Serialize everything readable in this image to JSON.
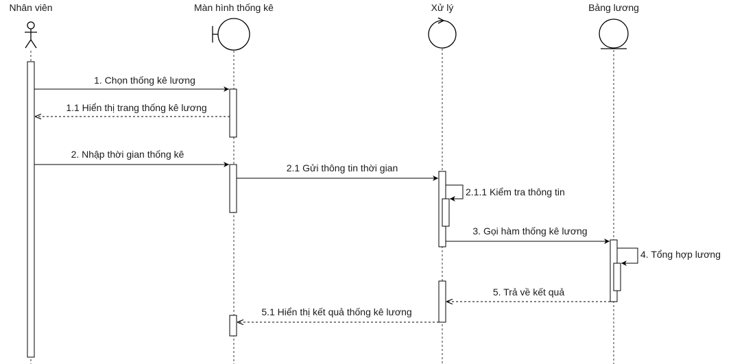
{
  "participants": [
    {
      "id": "nhan-vien",
      "type": "actor",
      "label": "Nhân viên"
    },
    {
      "id": "man-hinh",
      "type": "boundary",
      "label": "Màn hình thống kê"
    },
    {
      "id": "xu-ly",
      "type": "control",
      "label": "Xử lý"
    },
    {
      "id": "bang-luong",
      "type": "entity",
      "label": "Bảng lương"
    }
  ],
  "messages": [
    {
      "id": "m1",
      "kind": "sync",
      "from": "nhan-vien",
      "to": "man-hinh",
      "label": "1. Chọn thống kê lương"
    },
    {
      "id": "m1-1",
      "kind": "return",
      "from": "man-hinh",
      "to": "nhan-vien",
      "label": "1.1 Hiển thị trang thống kê lương"
    },
    {
      "id": "m2",
      "kind": "sync",
      "from": "nhan-vien",
      "to": "man-hinh",
      "label": "2. Nhập thời gian thống kê"
    },
    {
      "id": "m2-1",
      "kind": "sync",
      "from": "man-hinh",
      "to": "xu-ly",
      "label": "2.1 Gửi thông tin thời gian"
    },
    {
      "id": "m2-1-1",
      "kind": "self",
      "from": "xu-ly",
      "to": "xu-ly",
      "label": "2.1.1 Kiểm tra thông tin"
    },
    {
      "id": "m3",
      "kind": "sync",
      "from": "xu-ly",
      "to": "bang-luong",
      "label": "3. Gọi hàm thống kê lương"
    },
    {
      "id": "m4",
      "kind": "self",
      "from": "bang-luong",
      "to": "bang-luong",
      "label": "4. Tổng hợp lương"
    },
    {
      "id": "m5",
      "kind": "return",
      "from": "bang-luong",
      "to": "xu-ly",
      "label": "5. Trả về kết quả"
    },
    {
      "id": "m5-1",
      "kind": "return",
      "from": "xu-ly",
      "to": "man-hinh",
      "label": "5.1 Hiển thị kết quả thống kê lương"
    }
  ]
}
